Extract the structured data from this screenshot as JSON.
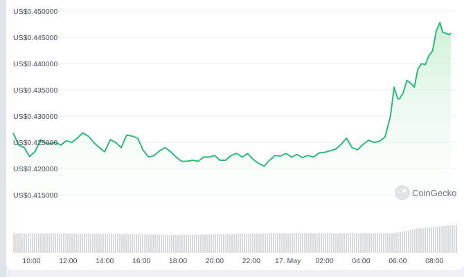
{
  "chart_data": {
    "type": "area",
    "title": "",
    "xlabel": "",
    "ylabel": "",
    "ylim": [
      0.412,
      0.45
    ],
    "y_ticks": [
      "US$0.450000",
      "US$0.445000",
      "US$0.440000",
      "US$0.435000",
      "US$0.430000",
      "US$0.425000",
      "US$0.420000",
      "US$0.415000"
    ],
    "y_tick_values": [
      0.45,
      0.445,
      0.44,
      0.435,
      0.43,
      0.425,
      0.42,
      0.415
    ],
    "x_ticks": [
      "10:00",
      "12:00",
      "14:00",
      "16:00",
      "18:00",
      "20:00",
      "22:00",
      "17. May",
      "02:00",
      "04:00",
      "06:00",
      "08:00"
    ],
    "x_tick_hours": [
      10,
      12,
      14,
      16,
      18,
      20,
      22,
      24,
      26,
      28,
      30,
      32
    ],
    "x_range_hours": [
      9.0,
      33.2
    ],
    "grid": true,
    "watermark": "CoinGecko",
    "colors": {
      "line": "#2cb87a",
      "fill_top": "#c9efd3",
      "fill_bottom": "#ffffff",
      "volume": "#d7d9dd",
      "grid": "#eceef2"
    },
    "series": [
      {
        "x": [
          9.0,
          9.3,
          9.6,
          9.9,
          10.2,
          10.5,
          10.7,
          11.0,
          11.3,
          11.6,
          11.9,
          12.2,
          12.5,
          12.8,
          13.1,
          13.4,
          13.7,
          14.0,
          14.3,
          14.6,
          14.9,
          15.2,
          15.5,
          15.8,
          16.1,
          16.4,
          16.7,
          17.0,
          17.3,
          17.6,
          17.9,
          18.2,
          18.5,
          18.8,
          19.1,
          19.4,
          19.7,
          20.0,
          20.3,
          20.6,
          20.9,
          21.2,
          21.5,
          21.8,
          22.1,
          22.4,
          22.7,
          23.0,
          23.3,
          23.6,
          23.9,
          24.2,
          24.5,
          24.8,
          25.1,
          25.4,
          25.7,
          26.0,
          26.3,
          26.6,
          26.9,
          27.2,
          27.5,
          27.8,
          28.1,
          28.4,
          28.7,
          29.0,
          29.3,
          29.6,
          29.8,
          30.0,
          30.1,
          30.3,
          30.5,
          30.7,
          30.9,
          31.1,
          31.3,
          31.5,
          31.7,
          31.9,
          32.1,
          32.3,
          32.45,
          32.6,
          32.8,
          32.9
        ],
        "values": [
          0.4268,
          0.4245,
          0.424,
          0.4223,
          0.4233,
          0.4255,
          0.425,
          0.4247,
          0.425,
          0.4245,
          0.4253,
          0.425,
          0.4258,
          0.4268,
          0.4262,
          0.425,
          0.424,
          0.4232,
          0.4255,
          0.425,
          0.424,
          0.4264,
          0.4262,
          0.4258,
          0.4235,
          0.4222,
          0.4225,
          0.4234,
          0.424,
          0.4232,
          0.4222,
          0.4214,
          0.4214,
          0.4216,
          0.4214,
          0.4222,
          0.4222,
          0.4225,
          0.4216,
          0.4216,
          0.4225,
          0.4229,
          0.4222,
          0.4229,
          0.4218,
          0.421,
          0.4205,
          0.4216,
          0.4225,
          0.4224,
          0.4229,
          0.4222,
          0.4227,
          0.4221,
          0.4225,
          0.4222,
          0.423,
          0.4231,
          0.4234,
          0.4237,
          0.4246,
          0.4258,
          0.424,
          0.4236,
          0.4246,
          0.4254,
          0.425,
          0.4252,
          0.426,
          0.43,
          0.4355,
          0.4333,
          0.4333,
          0.4345,
          0.4368,
          0.4363,
          0.4355,
          0.439,
          0.44,
          0.4398,
          0.4415,
          0.4424,
          0.4462,
          0.4478,
          0.446,
          0.4458,
          0.4455,
          0.4458
        ]
      }
    ],
    "volume": {
      "x": [
        9.0,
        12.0,
        15.0,
        18.0,
        21.0,
        24.0,
        27.0,
        29.8,
        30.2,
        31.0,
        32.0,
        32.9
      ],
      "values": [
        0.56,
        0.56,
        0.55,
        0.52,
        0.55,
        0.57,
        0.57,
        0.57,
        0.62,
        0.7,
        0.76,
        0.8
      ]
    }
  }
}
